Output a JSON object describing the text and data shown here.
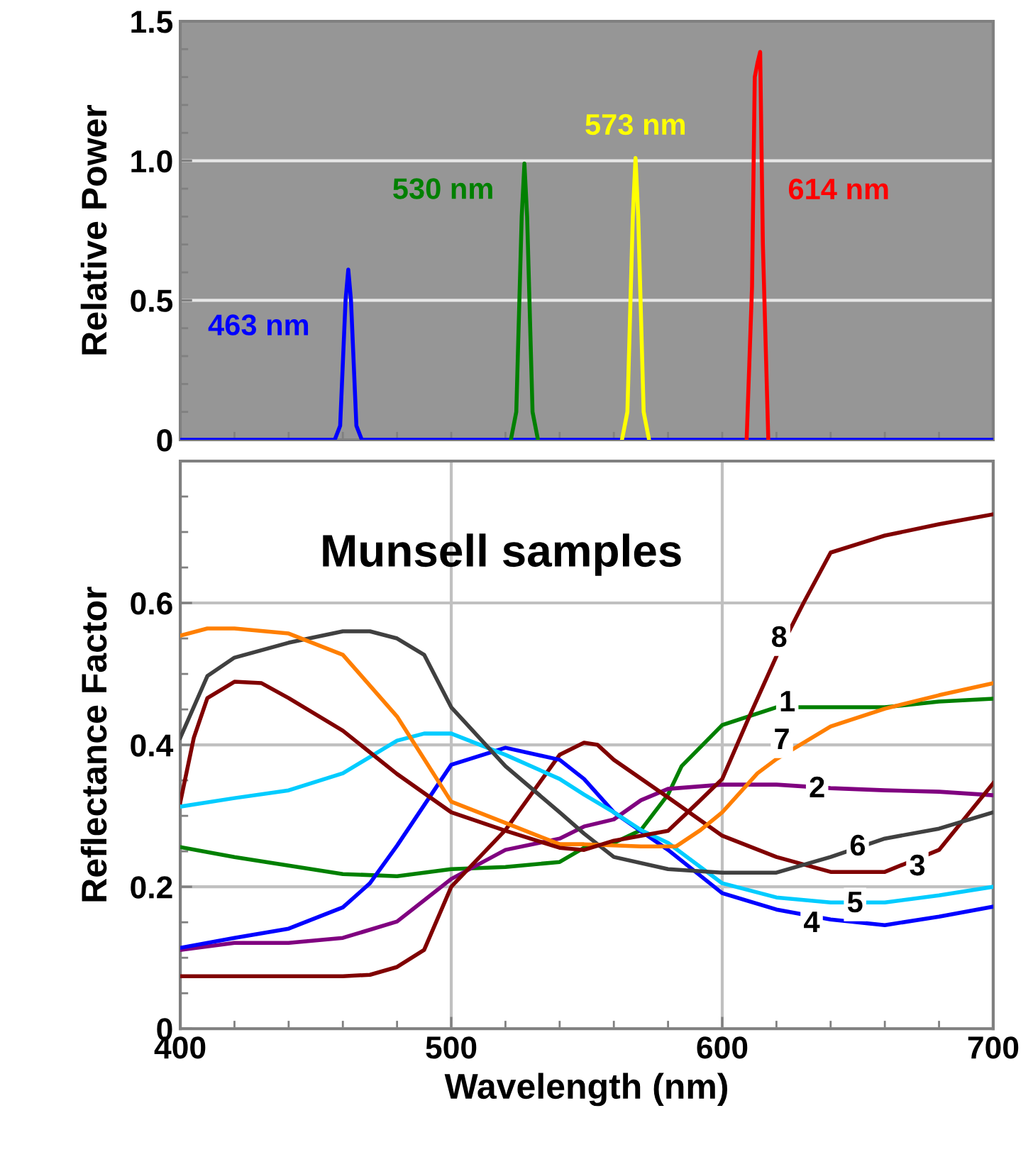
{
  "chart_data": [
    {
      "type": "line",
      "ylabel": "Relative Power",
      "xlim": [
        400,
        700
      ],
      "ylim": [
        0,
        1.5
      ],
      "xticks": [
        {
          "value": 400,
          "label": null
        },
        {
          "value": 420,
          "label": null
        },
        {
          "value": 440,
          "label": null
        },
        {
          "value": 460,
          "label": null
        },
        {
          "value": 480,
          "label": null
        },
        {
          "value": 500,
          "label": null
        },
        {
          "value": 520,
          "label": null
        },
        {
          "value": 540,
          "label": null
        },
        {
          "value": 560,
          "label": null
        },
        {
          "value": 580,
          "label": null
        },
        {
          "value": 600,
          "label": null
        },
        {
          "value": 620,
          "label": null
        },
        {
          "value": 640,
          "label": null
        },
        {
          "value": 660,
          "label": null
        },
        {
          "value": 680,
          "label": null
        },
        {
          "value": 700,
          "label": null
        }
      ],
      "yticks": [
        0,
        {
          "value": 0.1,
          "label": null
        },
        {
          "value": 0.2,
          "label": null
        },
        {
          "value": 0.3,
          "label": null
        },
        {
          "value": 0.4,
          "label": null
        },
        0.5,
        {
          "value": 0.6,
          "label": null
        },
        {
          "value": 0.7,
          "label": null
        },
        {
          "value": 0.8,
          "label": null
        },
        {
          "value": 0.9,
          "label": null
        },
        {
          "value": 1.0,
          "label": "1.0"
        },
        {
          "value": 1.1,
          "label": null
        },
        {
          "value": 1.2,
          "label": null
        },
        {
          "value": 1.3,
          "label": null
        },
        {
          "value": 1.4,
          "label": null
        },
        1.5
      ],
      "grid": true,
      "tick_labels": "y",
      "series": [
        {
          "name": "463 nm",
          "color": "#0000ff",
          "x": [
            400,
            457,
            459,
            461,
            462,
            463,
            465,
            467,
            700
          ],
          "values": [
            0,
            0,
            0.05,
            0.5,
            0.61,
            0.5,
            0.05,
            0,
            0
          ]
        },
        {
          "name": "530 nm",
          "color": "#008000",
          "x": [
            522,
            524,
            526,
            527,
            528,
            530,
            532
          ],
          "values": [
            0,
            0.1,
            0.8,
            0.99,
            0.8,
            0.1,
            0
          ]
        },
        {
          "name": "573 nm",
          "color": "#ffff00",
          "x": [
            563,
            565,
            567,
            568,
            569,
            571,
            573
          ],
          "values": [
            0,
            0.1,
            0.8,
            1.01,
            0.8,
            0.1,
            0
          ]
        },
        {
          "name": "614 nm",
          "color": "#ff0000",
          "x": [
            609,
            611,
            612,
            613,
            614,
            615,
            617
          ],
          "values": [
            0,
            0.55,
            1.3,
            1.35,
            1.39,
            0.7,
            0
          ]
        }
      ]
    },
    {
      "type": "line",
      "title": "Munsell samples",
      "xlabel": "Wavelength (nm)",
      "ylabel": "Reflectance Factor",
      "xlim": [
        400,
        700
      ],
      "ylim": [
        0,
        0.8
      ],
      "xticks": [
        400,
        {
          "value": 420,
          "label": null
        },
        {
          "value": 440,
          "label": null
        },
        {
          "value": 460,
          "label": null
        },
        {
          "value": 480,
          "label": null
        },
        500,
        {
          "value": 520,
          "label": null
        },
        {
          "value": 540,
          "label": null
        },
        {
          "value": 560,
          "label": null
        },
        {
          "value": 580,
          "label": null
        },
        600,
        {
          "value": 620,
          "label": null
        },
        {
          "value": 640,
          "label": null
        },
        {
          "value": 660,
          "label": null
        },
        {
          "value": 680,
          "label": null
        },
        700
      ],
      "yticks": [
        0,
        {
          "value": 0.05,
          "label": null
        },
        {
          "value": 0.1,
          "label": null
        },
        {
          "value": 0.15,
          "label": null
        },
        0.2,
        {
          "value": 0.25,
          "label": null
        },
        {
          "value": 0.3,
          "label": null
        },
        {
          "value": 0.35,
          "label": null
        },
        0.4,
        {
          "value": 0.45,
          "label": null
        },
        {
          "value": 0.5,
          "label": null
        },
        {
          "value": 0.55,
          "label": null
        },
        0.6,
        {
          "value": 0.65,
          "label": null
        },
        {
          "value": 0.7,
          "label": null
        },
        {
          "value": 0.75,
          "label": null
        },
        {
          "value": 0.8,
          "label": null
        }
      ],
      "grid": true,
      "series": [
        {
          "name": "1",
          "color": "#008000",
          "x": [
            400,
            420,
            440,
            460,
            480,
            500,
            520,
            540,
            549,
            560,
            570,
            580,
            585,
            600,
            620,
            640,
            660,
            680,
            700
          ],
          "values": [
            0.256,
            0.242,
            0.23,
            0.218,
            0.215,
            0.225,
            0.228,
            0.235,
            0.255,
            0.262,
            0.28,
            0.33,
            0.37,
            0.428,
            0.453,
            0.453,
            0.453,
            0.461,
            0.465
          ]
        },
        {
          "name": "2",
          "color": "#800080",
          "x": [
            400,
            420,
            440,
            460,
            480,
            500,
            520,
            540,
            549,
            560,
            570,
            580,
            600,
            620,
            640,
            660,
            680,
            700
          ],
          "values": [
            0.111,
            0.121,
            0.121,
            0.128,
            0.151,
            0.211,
            0.252,
            0.268,
            0.285,
            0.295,
            0.322,
            0.338,
            0.344,
            0.344,
            0.339,
            0.336,
            0.334,
            0.329
          ]
        },
        {
          "name": "3",
          "color": "#800000",
          "x": [
            400,
            420,
            440,
            460,
            470,
            480,
            490,
            500,
            520,
            540,
            549,
            554,
            560,
            580,
            600,
            620,
            640,
            660,
            680,
            700
          ],
          "values": [
            0.074,
            0.074,
            0.074,
            0.074,
            0.076,
            0.087,
            0.111,
            0.2,
            0.28,
            0.386,
            0.403,
            0.4,
            0.379,
            0.326,
            0.272,
            0.242,
            0.221,
            0.221,
            0.252,
            0.346
          ]
        },
        {
          "name": "4",
          "color": "#0000ff",
          "x": [
            400,
            420,
            440,
            460,
            470,
            480,
            500,
            520,
            540,
            549,
            560,
            580,
            600,
            620,
            640,
            660,
            680,
            700
          ],
          "values": [
            0.114,
            0.128,
            0.141,
            0.171,
            0.205,
            0.258,
            0.372,
            0.396,
            0.379,
            0.352,
            0.305,
            0.252,
            0.191,
            0.168,
            0.154,
            0.146,
            0.158,
            0.172
          ]
        },
        {
          "name": "5",
          "color": "#00ccff",
          "x": [
            400,
            420,
            440,
            460,
            480,
            490,
            500,
            520,
            540,
            549,
            560,
            570,
            580,
            600,
            620,
            640,
            660,
            680,
            700
          ],
          "values": [
            0.313,
            0.325,
            0.336,
            0.36,
            0.406,
            0.416,
            0.416,
            0.386,
            0.352,
            0.33,
            0.305,
            0.28,
            0.262,
            0.205,
            0.185,
            0.178,
            0.178,
            0.188,
            0.2
          ]
        },
        {
          "name": "6",
          "color": "#404040",
          "x": [
            400,
            410,
            420,
            440,
            460,
            470,
            480,
            490,
            500,
            520,
            540,
            549,
            560,
            580,
            600,
            620,
            640,
            660,
            680,
            700
          ],
          "values": [
            0.41,
            0.497,
            0.523,
            0.544,
            0.56,
            0.56,
            0.55,
            0.527,
            0.453,
            0.37,
            0.305,
            0.275,
            0.242,
            0.225,
            0.22,
            0.22,
            0.242,
            0.268,
            0.282,
            0.305
          ]
        },
        {
          "name": "7",
          "color": "#ff7f00",
          "x": [
            400,
            410,
            420,
            440,
            460,
            480,
            490,
            500,
            520,
            540,
            549,
            570,
            583,
            592,
            600,
            613,
            620,
            640,
            660,
            680,
            700
          ],
          "values": [
            0.554,
            0.564,
            0.564,
            0.557,
            0.527,
            0.44,
            0.38,
            0.32,
            0.29,
            0.26,
            0.26,
            0.257,
            0.257,
            0.28,
            0.305,
            0.36,
            0.38,
            0.426,
            0.451,
            0.47,
            0.487
          ]
        },
        {
          "name": "8",
          "color": "#800000",
          "x": [
            400,
            405,
            410,
            420,
            430,
            440,
            460,
            480,
            500,
            520,
            540,
            549,
            560,
            580,
            590,
            600,
            610,
            620,
            630,
            640,
            660,
            680,
            700
          ],
          "values": [
            0.319,
            0.41,
            0.466,
            0.489,
            0.487,
            0.466,
            0.42,
            0.359,
            0.305,
            0.279,
            0.255,
            0.252,
            0.265,
            0.279,
            0.315,
            0.352,
            0.44,
            0.525,
            0.6,
            0.671,
            0.695,
            0.711,
            0.725
          ]
        }
      ]
    }
  ]
}
